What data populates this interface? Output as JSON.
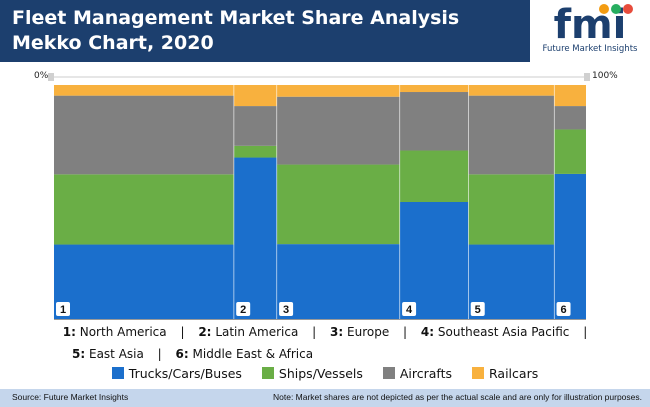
{
  "header": {
    "title": "Fleet Management Market Share Analysis Mekko Chart, 2020"
  },
  "logo": {
    "mark": "fmi",
    "caption": "Future Market Insights"
  },
  "colors": {
    "header_bg": "#1c3f6e",
    "trucks": "#1b6fcc",
    "ships": "#6aae46",
    "aircrafts": "#808080",
    "railcars": "#f8b13e",
    "footer_bg": "#c5d6ec"
  },
  "chart_data": {
    "type": "bar",
    "subtype": "mekko",
    "x_axis": {
      "left_label": "0%",
      "right_label": "100%"
    },
    "regions": [
      {
        "id": "1",
        "name": "North America",
        "width": 31.5,
        "segments": [
          35,
          33,
          37,
          5
        ]
      },
      {
        "id": "2",
        "name": "Latin America",
        "width": 7.5,
        "segments": [
          69,
          5,
          17,
          9
        ]
      },
      {
        "id": "3",
        "name": "Europe",
        "width": 21.5,
        "segments": [
          32,
          34,
          29,
          5
        ]
      },
      {
        "id": "4",
        "name": "Southeast Asia Pacific",
        "width": 12.0,
        "segments": [
          50,
          22,
          25,
          3
        ]
      },
      {
        "id": "5",
        "name": "East Asia",
        "width": 15.0,
        "segments": [
          35,
          33,
          37,
          5
        ]
      },
      {
        "id": "6",
        "name": "Middle East & Africa",
        "width": 5.5,
        "segments": [
          62,
          19,
          10,
          9
        ]
      }
    ],
    "series": [
      {
        "name": "Trucks/Cars/Buses",
        "color": "#1b6fcc"
      },
      {
        "name": "Ships/Vessels",
        "color": "#6aae46"
      },
      {
        "name": "Aircrafts",
        "color": "#808080"
      },
      {
        "name": "Railcars",
        "color": "#f8b13e"
      }
    ],
    "legend_position": "bottom"
  },
  "key": {
    "line1": [
      {
        "num": "1:",
        "name": "North America"
      },
      {
        "num": "2:",
        "name": "Latin America"
      },
      {
        "num": "3:",
        "name": "Europe"
      },
      {
        "num": "4:",
        "name": "Southeast Asia Pacific"
      }
    ],
    "line2": [
      {
        "num": "5:",
        "name": "East Asia"
      },
      {
        "num": "6:",
        "name": "Middle East & Africa"
      }
    ],
    "separator": "|"
  },
  "footer": {
    "source": "Source: Future Market Insights",
    "note": "Note: Market shares are not depicted as per the actual scale and are only for illustration purposes."
  }
}
